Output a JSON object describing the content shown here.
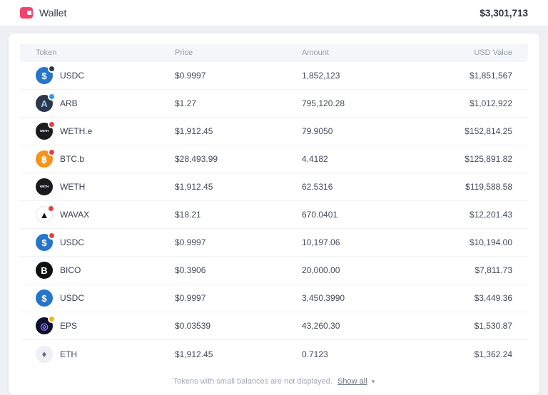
{
  "header": {
    "title": "Wallet",
    "total": "$3,301,713"
  },
  "accent_color": "#f3436d",
  "table": {
    "columns": [
      "Token",
      "Price",
      "Amount",
      "USD Value"
    ],
    "rows": [
      {
        "token": "USDC",
        "price": "$0.9997",
        "amount": "1,852,123",
        "usd": "$1,851,567",
        "icon": {
          "glyph": "$",
          "bg": "#2775ca",
          "fg": "#ffffff",
          "badge": "#2d374b",
          "border": ""
        }
      },
      {
        "token": "ARB",
        "price": "$1.27",
        "amount": "795,120.28",
        "usd": "$1,012,922",
        "icon": {
          "glyph": "A",
          "bg": "#2d374b",
          "fg": "#9fc9ec",
          "badge": "#28a0f0",
          "border": ""
        }
      },
      {
        "token": "WETH.e",
        "price": "$1,912.45",
        "amount": "79.9050",
        "usd": "$152,814.25",
        "icon": {
          "glyph": "WETH",
          "bg": "#1b1b1f",
          "fg": "#ffffff",
          "badge": "#e84142",
          "border": ""
        }
      },
      {
        "token": "BTC.b",
        "price": "$28,493.99",
        "amount": "4.4182",
        "usd": "$125,891.82",
        "icon": {
          "glyph": "฿",
          "bg": "#f7931a",
          "fg": "#ffffff",
          "badge": "#e84142",
          "border": ""
        }
      },
      {
        "token": "WETH",
        "price": "$1,912.45",
        "amount": "62.5316",
        "usd": "$119,588.58",
        "icon": {
          "glyph": "WETH",
          "bg": "#1b1b1f",
          "fg": "#ffffff",
          "badge": "",
          "border": ""
        }
      },
      {
        "token": "WAVAX",
        "price": "$18.21",
        "amount": "670.0401",
        "usd": "$12,201.43",
        "icon": {
          "glyph": "▲",
          "bg": "#ffffff",
          "fg": "#141414",
          "badge": "#e84142",
          "border": "#e2e4e9"
        }
      },
      {
        "token": "USDC",
        "price": "$0.9997",
        "amount": "10,197.06",
        "usd": "$10,194.00",
        "icon": {
          "glyph": "$",
          "bg": "#2775ca",
          "fg": "#ffffff",
          "badge": "#e84142",
          "border": ""
        }
      },
      {
        "token": "BICO",
        "price": "$0.3906",
        "amount": "20,000.00",
        "usd": "$7,811.73",
        "icon": {
          "glyph": "B",
          "bg": "#101114",
          "fg": "#ffffff",
          "badge": "",
          "border": ""
        }
      },
      {
        "token": "USDC",
        "price": "$0.9997",
        "amount": "3,450.3990",
        "usd": "$3,449.36",
        "icon": {
          "glyph": "$",
          "bg": "#2775ca",
          "fg": "#ffffff",
          "badge": "",
          "border": ""
        }
      },
      {
        "token": "EPS",
        "price": "$0.03539",
        "amount": "43,260.30",
        "usd": "$1,530.87",
        "icon": {
          "glyph": "◎",
          "bg": "#0d0f2b",
          "fg": "#8a7cff",
          "badge": "#f0b90b",
          "border": ""
        }
      },
      {
        "token": "ETH",
        "price": "$1,912.45",
        "amount": "0.7123",
        "usd": "$1,362.24",
        "icon": {
          "glyph": "♦",
          "bg": "#eef0f5",
          "fg": "#62688f",
          "badge": "",
          "border": ""
        }
      }
    ]
  },
  "footer": {
    "note": "Tokens with small balances are not displayed.",
    "show_all": "Show all",
    "caret": "▾"
  }
}
